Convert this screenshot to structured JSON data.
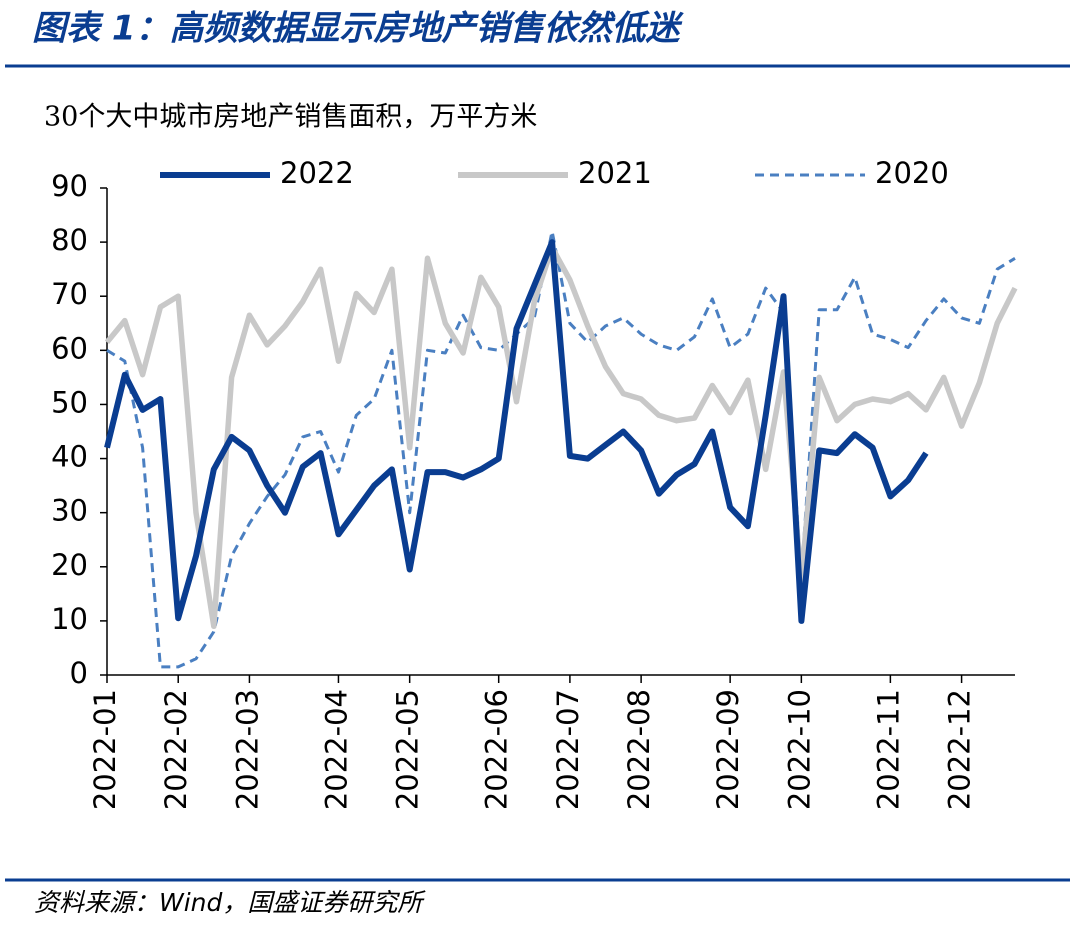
{
  "chart_data": {
    "type": "line",
    "title": "图表 1：高频数据显示房地产销售依然低迷",
    "subtitle": "30个大中城市房地产销售面积，万平方米",
    "source": "资料来源：Wind，国盛证券研究所",
    "categories": [
      "2022-01",
      null,
      null,
      null,
      "2022-02",
      null,
      null,
      null,
      "2022-03",
      null,
      null,
      null,
      null,
      "2022-04",
      null,
      null,
      null,
      "2022-05",
      null,
      null,
      null,
      null,
      "2022-06",
      null,
      null,
      null,
      "2022-07",
      null,
      null,
      null,
      "2022-08",
      null,
      null,
      null,
      null,
      "2022-09",
      null,
      null,
      null,
      "2022-10",
      null,
      null,
      null,
      null,
      "2022-11",
      null,
      null,
      null,
      "2022-12",
      null,
      null,
      null
    ],
    "series": [
      {
        "name": "2022",
        "color": "#0a3d91",
        "style": "solid",
        "values": [
          42,
          55.5,
          49,
          51,
          10.5,
          22,
          38,
          44,
          41.5,
          35,
          30,
          38.5,
          41,
          26,
          30.5,
          35,
          38,
          19.5,
          37.5,
          37.5,
          36.5,
          38,
          40,
          64,
          72,
          80,
          40.5,
          40,
          42.5,
          45,
          41.5,
          33.5,
          37,
          39,
          45,
          31,
          27.5,
          48,
          70,
          10,
          41.5,
          41,
          44.5,
          42,
          33,
          36,
          41,
          null,
          null,
          null,
          null,
          null
        ]
      },
      {
        "name": "2021",
        "color": "#c8c8c8",
        "style": "solid",
        "values": [
          61.5,
          65.5,
          55.5,
          68,
          70,
          30,
          9,
          55,
          66.5,
          61,
          64.5,
          69,
          75,
          58,
          70.5,
          67,
          75,
          42,
          77,
          65,
          59.5,
          73.5,
          68,
          50.5,
          69,
          79,
          73,
          64.5,
          57,
          52,
          51,
          48,
          47,
          47.5,
          53.5,
          48.5,
          54.5,
          38,
          56,
          17.5,
          55,
          47,
          50,
          51,
          50.5,
          52,
          49,
          55,
          46,
          54,
          65,
          71.5
        ]
      },
      {
        "name": "2020",
        "color": "#4a7fc1",
        "style": "dashed",
        "values": [
          60,
          58,
          42,
          1.5,
          1.5,
          3,
          8,
          22,
          28,
          33,
          37,
          44,
          45,
          37.5,
          48,
          51,
          60,
          30,
          60,
          59.5,
          66.5,
          60.5,
          60,
          63,
          66,
          82,
          65,
          61.5,
          64.5,
          66,
          63,
          61,
          60,
          62.5,
          69.5,
          60.5,
          63,
          71.5,
          67,
          18,
          67.5,
          67.5,
          73.5,
          63,
          62,
          60.5,
          65.5,
          69.5,
          66,
          65,
          75,
          77
        ]
      }
    ],
    "ylim": [
      0,
      90
    ],
    "yticks": [
      0,
      10,
      20,
      30,
      40,
      50,
      60,
      70,
      80,
      90
    ],
    "legend": "top",
    "grid": false
  }
}
